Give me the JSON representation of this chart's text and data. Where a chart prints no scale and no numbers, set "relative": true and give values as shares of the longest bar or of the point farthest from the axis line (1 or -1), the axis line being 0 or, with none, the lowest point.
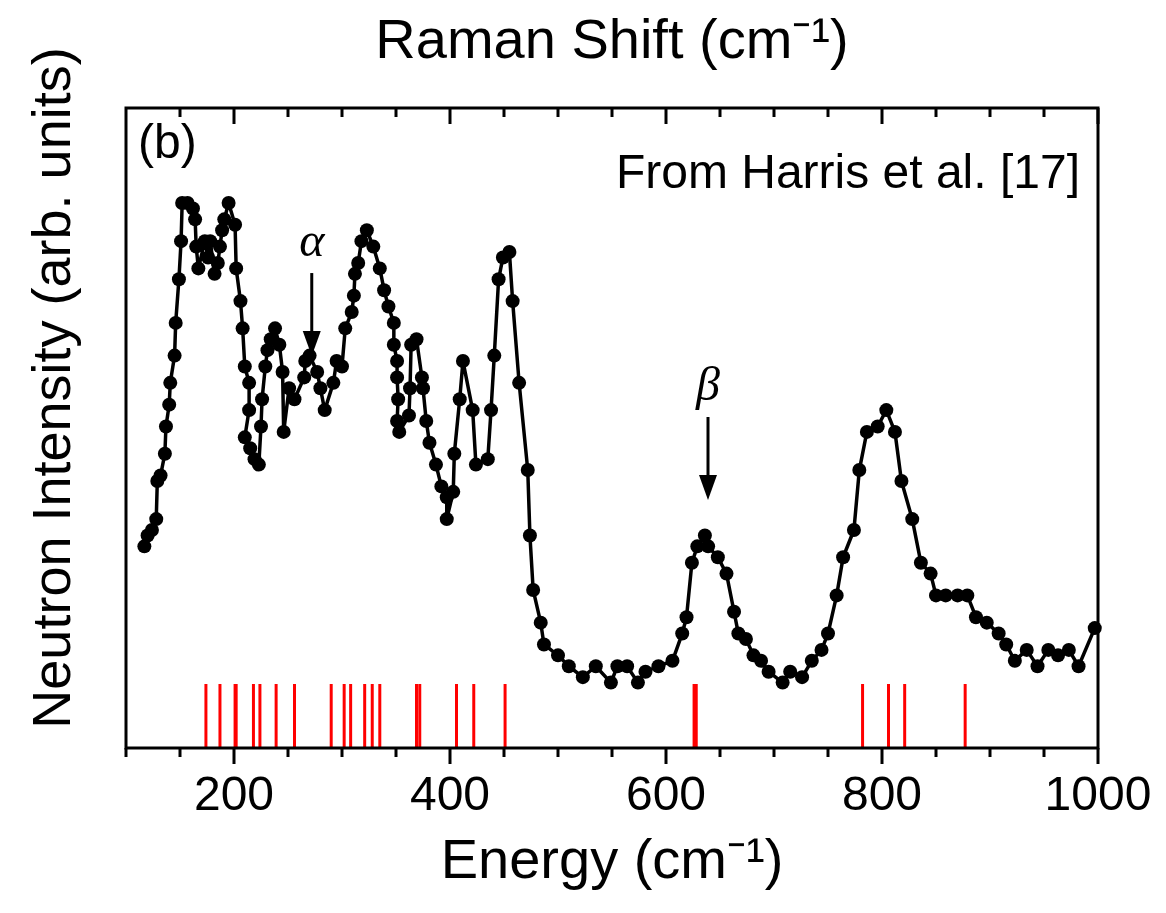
{
  "chart_data": {
    "type": "line",
    "relative": true,
    "x2label": "Raman Shift (cm⁻¹)",
    "xlabel": "Energy (cm⁻¹)",
    "ylabel": "Neutron Intensity (arb. units)",
    "xlim": [
      100,
      1000
    ],
    "xticks": [
      {
        "value": 150,
        "label": null
      },
      200,
      {
        "value": 250,
        "label": null
      },
      {
        "value": 300,
        "label": null
      },
      {
        "value": 350,
        "label": null
      },
      400,
      {
        "value": 450,
        "label": null
      },
      {
        "value": 500,
        "label": null
      },
      {
        "value": 550,
        "label": null
      },
      600,
      {
        "value": 650,
        "label": null
      },
      {
        "value": 700,
        "label": null
      },
      {
        "value": 750,
        "label": null
      },
      800,
      {
        "value": 850,
        "label": null
      },
      {
        "value": 900,
        "label": null
      },
      {
        "value": 950,
        "label": null
      },
      1000
    ],
    "marker": "circle",
    "line_style": "solid",
    "grid": false,
    "series": [
      {
        "color": "#000000",
        "x": [
          117,
          120,
          124,
          128,
          129,
          132,
          136,
          137,
          140,
          141,
          145,
          146,
          149,
          151,
          152,
          157,
          162,
          164,
          165,
          167,
          173,
          176,
          178,
          182,
          185,
          187,
          189,
          191,
          195,
          201,
          202,
          206,
          208,
          210,
          214,
          214,
          210,
          215,
          219,
          223,
          225,
          226,
          229,
          231,
          234,
          238,
          242,
          245,
          246,
          251,
          256,
          265,
          266,
          270,
          277,
          280,
          284,
          292,
          295,
          300,
          303,
          309,
          311,
          312,
          315,
          318,
          323,
          329,
          335,
          339,
          343,
          348,
          348,
          351,
          351,
          352,
          351,
          353,
          362,
          363,
          364,
          369,
          374,
          375,
          378,
          381,
          387,
          392,
          397,
          397,
          403,
          404,
          409,
          412,
          421,
          424,
          435,
          438,
          441,
          445,
          449,
          455,
          458,
          464,
          472,
          474,
          477,
          484,
          487,
          500,
          510,
          523,
          535,
          549,
          555,
          564,
          574,
          581,
          593,
          606,
          615,
          619,
          624,
          629,
          636,
          639,
          648,
          656,
          663,
          667,
          674,
          681,
          688,
          695,
          708,
          715,
          726,
          735,
          744,
          750,
          758,
          764,
          774,
          779,
          786,
          796,
          804,
          812,
          818,
          828,
          836,
          845,
          850,
          859,
          870,
          879,
          887,
          897,
          908,
          915,
          923,
          934,
          944,
          954,
          963,
          973,
          982,
          997
        ],
        "values": [
          0.37,
          0.39,
          0.4,
          0.42,
          0.49,
          0.5,
          0.54,
          0.59,
          0.63,
          0.67,
          0.72,
          0.78,
          0.86,
          0.93,
          1.0,
          1.0,
          0.99,
          0.97,
          0.92,
          0.88,
          0.93,
          0.9,
          0.93,
          0.87,
          0.89,
          0.92,
          0.95,
          0.97,
          1.0,
          0.96,
          0.88,
          0.82,
          0.77,
          0.7,
          0.67,
          0.62,
          0.57,
          0.55,
          0.53,
          0.52,
          0.59,
          0.64,
          0.7,
          0.73,
          0.75,
          0.77,
          0.74,
          0.69,
          0.58,
          0.66,
          0.64,
          0.68,
          0.71,
          0.72,
          0.69,
          0.66,
          0.62,
          0.67,
          0.71,
          0.7,
          0.77,
          0.8,
          0.83,
          0.87,
          0.89,
          0.93,
          0.95,
          0.92,
          0.88,
          0.84,
          0.81,
          0.78,
          0.74,
          0.71,
          0.68,
          0.64,
          0.6,
          0.58,
          0.61,
          0.66,
          0.74,
          0.75,
          0.68,
          0.66,
          0.6,
          0.56,
          0.52,
          0.48,
          0.46,
          0.42,
          0.47,
          0.54,
          0.64,
          0.71,
          0.62,
          0.52,
          0.53,
          0.62,
          0.72,
          0.86,
          0.9,
          0.91,
          0.82,
          0.67,
          0.51,
          0.39,
          0.29,
          0.23,
          0.19,
          0.17,
          0.15,
          0.13,
          0.15,
          0.12,
          0.15,
          0.15,
          0.12,
          0.14,
          0.15,
          0.16,
          0.21,
          0.24,
          0.34,
          0.37,
          0.39,
          0.37,
          0.35,
          0.32,
          0.25,
          0.21,
          0.2,
          0.17,
          0.16,
          0.14,
          0.12,
          0.14,
          0.13,
          0.16,
          0.18,
          0.21,
          0.28,
          0.35,
          0.4,
          0.51,
          0.58,
          0.59,
          0.62,
          0.58,
          0.49,
          0.42,
          0.34,
          0.32,
          0.28,
          0.28,
          0.28,
          0.28,
          0.24,
          0.23,
          0.21,
          0.19,
          0.16,
          0.18,
          0.15,
          0.18,
          0.17,
          0.18,
          0.15,
          0.22
        ]
      }
    ],
    "ref_lines": [
      {
        "axis": "x",
        "value": 174,
        "color": "#ff0000"
      },
      {
        "axis": "x",
        "value": 187,
        "color": "#ff0000"
      },
      {
        "axis": "x",
        "value": 201,
        "color": "#ff0000"
      },
      {
        "axis": "x",
        "value": 202,
        "color": "#ff0000"
      },
      {
        "axis": "x",
        "value": 218,
        "color": "#ff0000"
      },
      {
        "axis": "x",
        "value": 224,
        "color": "#ff0000"
      },
      {
        "axis": "x",
        "value": 239,
        "color": "#ff0000"
      },
      {
        "axis": "x",
        "value": 256,
        "color": "#ff0000"
      },
      {
        "axis": "x",
        "value": 290,
        "color": "#ff0000"
      },
      {
        "axis": "x",
        "value": 302,
        "color": "#ff0000"
      },
      {
        "axis": "x",
        "value": 308,
        "color": "#ff0000"
      },
      {
        "axis": "x",
        "value": 321,
        "color": "#ff0000"
      },
      {
        "axis": "x",
        "value": 328,
        "color": "#ff0000"
      },
      {
        "axis": "x",
        "value": 335,
        "color": "#ff0000"
      },
      {
        "axis": "x",
        "value": 369,
        "color": "#ff0000"
      },
      {
        "axis": "x",
        "value": 372,
        "color": "#ff0000"
      },
      {
        "axis": "x",
        "value": 406,
        "color": "#ff0000"
      },
      {
        "axis": "x",
        "value": 422,
        "color": "#ff0000"
      },
      {
        "axis": "x",
        "value": 451,
        "color": "#ff0000"
      },
      {
        "axis": "x",
        "value": 626,
        "color": "#ff0000"
      },
      {
        "axis": "x",
        "value": 628,
        "color": "#ff0000"
      },
      {
        "axis": "x",
        "value": 782,
        "color": "#ff0000"
      },
      {
        "axis": "x",
        "value": 806,
        "color": "#ff0000"
      },
      {
        "axis": "x",
        "value": 821,
        "color": "#ff0000"
      },
      {
        "axis": "x",
        "value": 877,
        "color": "#ff0000"
      }
    ],
    "annotations": [
      "(b)",
      "From Harris et al. [17]",
      {
        "text": "α",
        "x": 272,
        "y": 0.71
      },
      "β"
    ]
  }
}
